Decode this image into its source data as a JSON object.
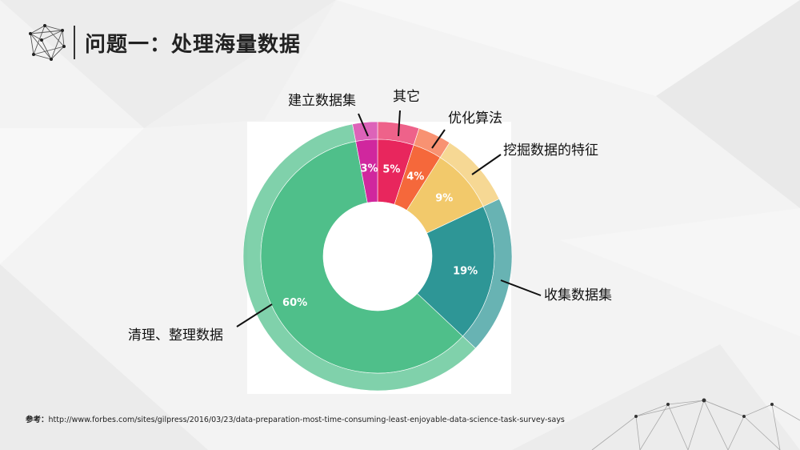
{
  "page": {
    "title": "问题一：处理海量数据"
  },
  "reference": {
    "label": "参考：",
    "url": "http://www.forbes.com/sites/gilpress/2016/03/23/data-preparation-most-time-consuming-least-enjoyable-data-science-task-survey-says"
  },
  "chart_data": {
    "type": "pie",
    "title": "",
    "donut": true,
    "categories": [
      "其它",
      "优化算法",
      "挖掘数据的特征",
      "收集数据集",
      "清理、整理数据",
      "建立数据集"
    ],
    "values": [
      5,
      4,
      9,
      19,
      60,
      3
    ],
    "labels": [
      "5%",
      "4%",
      "9%",
      "19%",
      "60%",
      "3%"
    ],
    "colors": [
      "#e8265d",
      "#f5683b",
      "#f2c96b",
      "#2e9696",
      "#4fbf8a",
      "#d0279e"
    ],
    "legend_position": "callouts"
  }
}
